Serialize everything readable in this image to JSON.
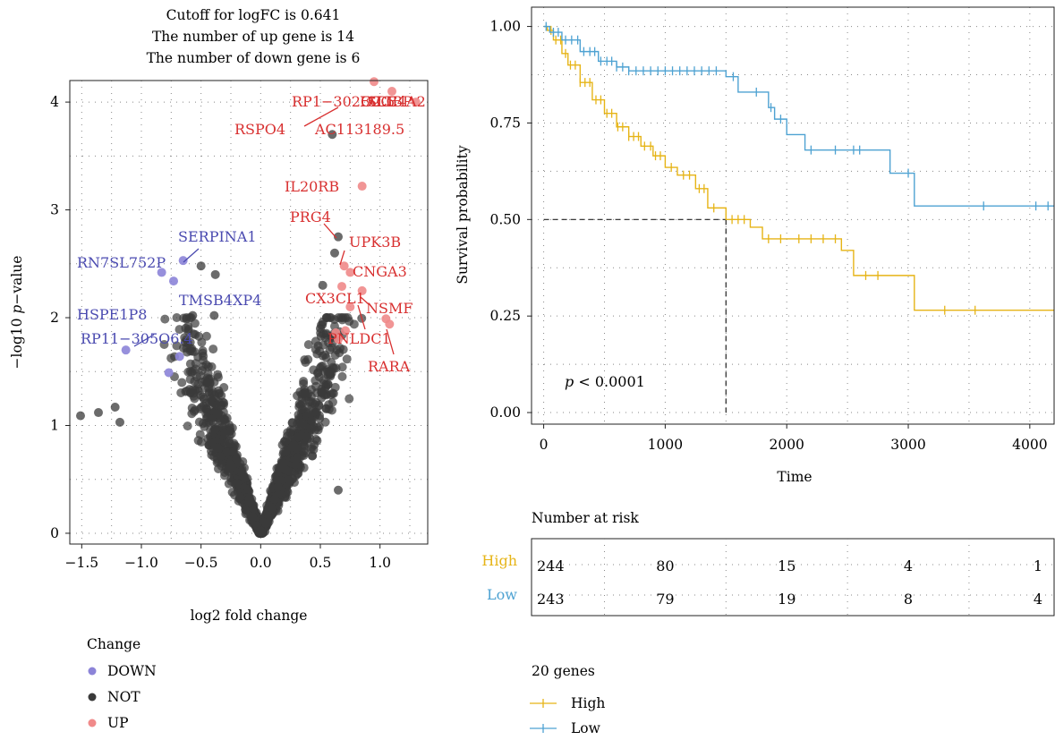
{
  "colors": {
    "down": "#8c84d8",
    "not": "#3a3a3a",
    "up": "#f08a8a",
    "down_label": "#4a4ab0",
    "up_label": "#d83030",
    "high": "#e6b416",
    "low": "#4ea2d2",
    "gene_label_line_up": "#d83030",
    "gene_label_line_down": "#4a4ab0"
  },
  "volcano": {
    "title_lines": [
      "Cutoff for logFC is 0.641",
      "The number of up gene is 14",
      "The number of down gene is 6"
    ],
    "xlabel": "log2 fold change",
    "ylabel_prefix": "−log10 ",
    "ylabel_italic": "p",
    "ylabel_suffix": "−value",
    "xticks": [
      "−1.5",
      "−1.0",
      "−0.5",
      "0.0",
      "0.5",
      "1.0"
    ],
    "yticks": [
      "0",
      "1",
      "2",
      "3",
      "4"
    ],
    "legend_title": "Change",
    "legend_items": [
      "DOWN",
      "NOT",
      "UP"
    ]
  },
  "survival": {
    "ylabel": "Survival probability",
    "xlabel": "Time",
    "yticks": [
      "0.00",
      "0.25",
      "0.50",
      "0.75",
      "1.00"
    ],
    "xticks": [
      "0",
      "1000",
      "2000",
      "3000",
      "4000"
    ],
    "pvalue_italic": "p",
    "pvalue_text": " < 0.0001",
    "risk_title": "Number at risk",
    "risk_rows": [
      {
        "label": "High",
        "values": [
          "244",
          "80",
          "15",
          "4",
          "1"
        ]
      },
      {
        "label": "Low",
        "values": [
          "243",
          "79",
          "19",
          "8",
          "4"
        ]
      }
    ],
    "legend_title": "20 genes",
    "legend_items": [
      "High",
      "Low"
    ]
  },
  "chart_data": [
    {
      "type": "scatter",
      "title": "Cutoff for logFC is 0.641 / The number of up gene is 14 / The number of down gene is 6",
      "xlabel": "log2 fold change",
      "ylabel": "−log10 p−value",
      "xlim": [
        -1.6,
        1.4
      ],
      "ylim": [
        -0.1,
        4.2
      ],
      "grid": true,
      "legend": "bottom-left",
      "series": [
        {
          "name": "DOWN",
          "points": [
            [
              -0.83,
              2.42
            ],
            [
              -0.65,
              2.53
            ],
            [
              -0.73,
              2.34
            ],
            [
              -1.13,
              1.7
            ],
            [
              -0.68,
              1.64
            ],
            [
              -0.77,
              1.49
            ]
          ]
        },
        {
          "name": "UP",
          "points": [
            [
              1.3,
              4.0
            ],
            [
              0.95,
              4.19
            ],
            [
              1.1,
              4.1
            ],
            [
              0.85,
              3.22
            ],
            [
              0.7,
              2.48
            ],
            [
              0.75,
              2.42
            ],
            [
              0.68,
              2.29
            ],
            [
              0.85,
              2.25
            ],
            [
              0.75,
              2.1
            ],
            [
              1.05,
              1.99
            ],
            [
              1.08,
              1.94
            ],
            [
              0.65,
              1.8
            ],
            [
              0.63,
              1.86
            ],
            [
              0.71,
              1.88
            ]
          ]
        },
        {
          "name": "NOT",
          "points": [
            [
              0.6,
              3.7
            ],
            [
              0.65,
              2.75
            ],
            [
              0.62,
              2.6
            ],
            [
              -0.5,
              2.48
            ],
            [
              -0.38,
              2.4
            ],
            [
              -0.57,
              2.02
            ],
            [
              -0.39,
              2.02
            ],
            [
              -1.51,
              1.09
            ],
            [
              -1.36,
              1.12
            ],
            [
              -1.22,
              1.17
            ],
            [
              -1.18,
              1.03
            ],
            [
              0.65,
              0.4
            ],
            [
              0.52,
              2.3
            ],
            [
              0.55,
              2.0
            ],
            [
              0.5,
              1.9
            ]
          ]
        }
      ],
      "annotations": [
        {
          "text": "RP1−302G2.5",
          "group": "UP"
        },
        {
          "text": "ACE",
          "group": "UP"
        },
        {
          "text": "FCGBP",
          "group": "UP"
        },
        {
          "text": "SLC4A2",
          "group": "UP"
        },
        {
          "text": "RSPO4",
          "group": "UP"
        },
        {
          "text": "AC113189.5",
          "group": "UP"
        },
        {
          "text": "IL20RB",
          "group": "UP"
        },
        {
          "text": "PRG4",
          "group": "UP"
        },
        {
          "text": "UPK3B",
          "group": "UP"
        },
        {
          "text": "CNGA3",
          "group": "UP"
        },
        {
          "text": "CX3CL1",
          "group": "UP"
        },
        {
          "text": "NSMF",
          "group": "UP"
        },
        {
          "text": "PNLDC1",
          "group": "UP"
        },
        {
          "text": "RARA",
          "group": "UP"
        },
        {
          "text": "SERPINA1",
          "group": "DOWN"
        },
        {
          "text": "RN7SL752P",
          "group": "DOWN"
        },
        {
          "text": "TMSB4XP4",
          "group": "DOWN"
        },
        {
          "text": "HSPE1P8",
          "group": "DOWN"
        },
        {
          "text": "RP11−305O6.4",
          "group": "DOWN"
        }
      ]
    },
    {
      "type": "line",
      "subtype": "kaplan-meier",
      "xlabel": "Time",
      "ylabel": "Survival probability",
      "xlim": [
        -100,
        4200
      ],
      "ylim": [
        -0.03,
        1.05
      ],
      "grid": true,
      "annotation": "p < 0.0001",
      "median_survival": {
        "group": "High",
        "time": 1500,
        "probability": 0.5
      },
      "series": [
        {
          "name": "High",
          "steps": [
            [
              0,
              1.0
            ],
            [
              30,
              0.99
            ],
            [
              80,
              0.965
            ],
            [
              150,
              0.93
            ],
            [
              200,
              0.9
            ],
            [
              300,
              0.855
            ],
            [
              400,
              0.81
            ],
            [
              500,
              0.775
            ],
            [
              600,
              0.74
            ],
            [
              700,
              0.715
            ],
            [
              800,
              0.69
            ],
            [
              900,
              0.665
            ],
            [
              1000,
              0.635
            ],
            [
              1100,
              0.615
            ],
            [
              1250,
              0.58
            ],
            [
              1350,
              0.53
            ],
            [
              1500,
              0.5
            ],
            [
              1700,
              0.48
            ],
            [
              1800,
              0.45
            ],
            [
              2450,
              0.42
            ],
            [
              2550,
              0.355
            ],
            [
              3050,
              0.265
            ],
            [
              4200,
              0.265
            ]
          ],
          "censor_times": [
            60,
            100,
            140,
            180,
            220,
            260,
            300,
            340,
            380,
            430,
            470,
            520,
            560,
            610,
            650,
            700,
            740,
            780,
            830,
            880,
            920,
            960,
            1050,
            1150,
            1200,
            1280,
            1320,
            1400,
            1550,
            1600,
            1650,
            1850,
            1950,
            2100,
            2200,
            2300,
            2400,
            2650,
            2750,
            3300,
            3550
          ]
        },
        {
          "name": "Low",
          "steps": [
            [
              0,
              1.0
            ],
            [
              50,
              0.985
            ],
            [
              150,
              0.965
            ],
            [
              300,
              0.935
            ],
            [
              450,
              0.91
            ],
            [
              600,
              0.895
            ],
            [
              700,
              0.885
            ],
            [
              1500,
              0.87
            ],
            [
              1600,
              0.83
            ],
            [
              1850,
              0.79
            ],
            [
              1900,
              0.76
            ],
            [
              2000,
              0.72
            ],
            [
              2150,
              0.68
            ],
            [
              2850,
              0.62
            ],
            [
              3050,
              0.535
            ],
            [
              4200,
              0.535
            ]
          ],
          "censor_times": [
            20,
            80,
            120,
            180,
            230,
            280,
            330,
            380,
            420,
            470,
            520,
            560,
            600,
            650,
            700,
            760,
            820,
            880,
            940,
            1000,
            1060,
            1120,
            1180,
            1240,
            1300,
            1360,
            1420,
            1560,
            1750,
            1870,
            1950,
            2200,
            2400,
            2550,
            2600,
            3000,
            3620,
            4050,
            4150
          ]
        }
      ],
      "risk_table": {
        "times": [
          0,
          1000,
          2000,
          3000,
          4000
        ],
        "High": [
          244,
          80,
          15,
          4,
          1
        ],
        "Low": [
          243,
          79,
          19,
          8,
          4
        ]
      }
    }
  ]
}
